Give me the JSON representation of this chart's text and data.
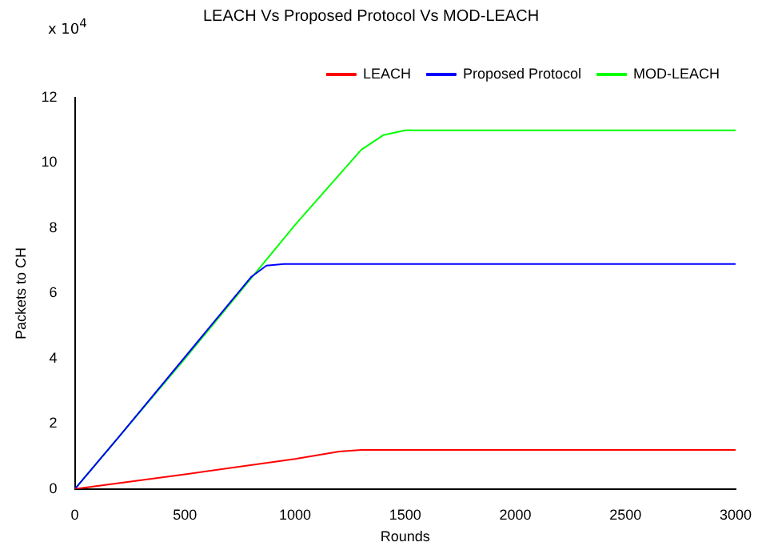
{
  "chart_data": {
    "type": "line",
    "title": "LEACH Vs Proposed Protocol Vs MOD-LEACH",
    "xlabel": "Rounds",
    "ylabel": "Packets to CH",
    "annotations": [
      "x 10$^{4}$"
    ],
    "xlim": [
      0,
      3000
    ],
    "xticks": [
      0,
      500,
      1000,
      1500,
      2000,
      2500,
      3000
    ],
    "ylim": [
      0,
      12
    ],
    "yticks": [
      0,
      2,
      4,
      6,
      8,
      10,
      12
    ],
    "legend": "top right",
    "marker": "none",
    "line_style": "solid",
    "grid": false,
    "series": [
      {
        "name": "LEACH",
        "color": "#ff0000",
        "x": [
          0,
          500,
          1000,
          1200,
          1300,
          3000
        ],
        "values": [
          0,
          0.45,
          0.92,
          1.15,
          1.2,
          1.2
        ]
      },
      {
        "name": "Proposed Protocol",
        "color": "#0000ff",
        "x": [
          0,
          200,
          800,
          870,
          950,
          3000
        ],
        "values": [
          0,
          1.6,
          6.5,
          6.85,
          6.9,
          6.9
        ]
      },
      {
        "name": "MOD-LEACH",
        "color": "#00ff00",
        "x": [
          0,
          500,
          1000,
          1300,
          1400,
          1500,
          3000
        ],
        "values": [
          0,
          4,
          8.1,
          10.4,
          10.85,
          11,
          11
        ]
      }
    ]
  }
}
